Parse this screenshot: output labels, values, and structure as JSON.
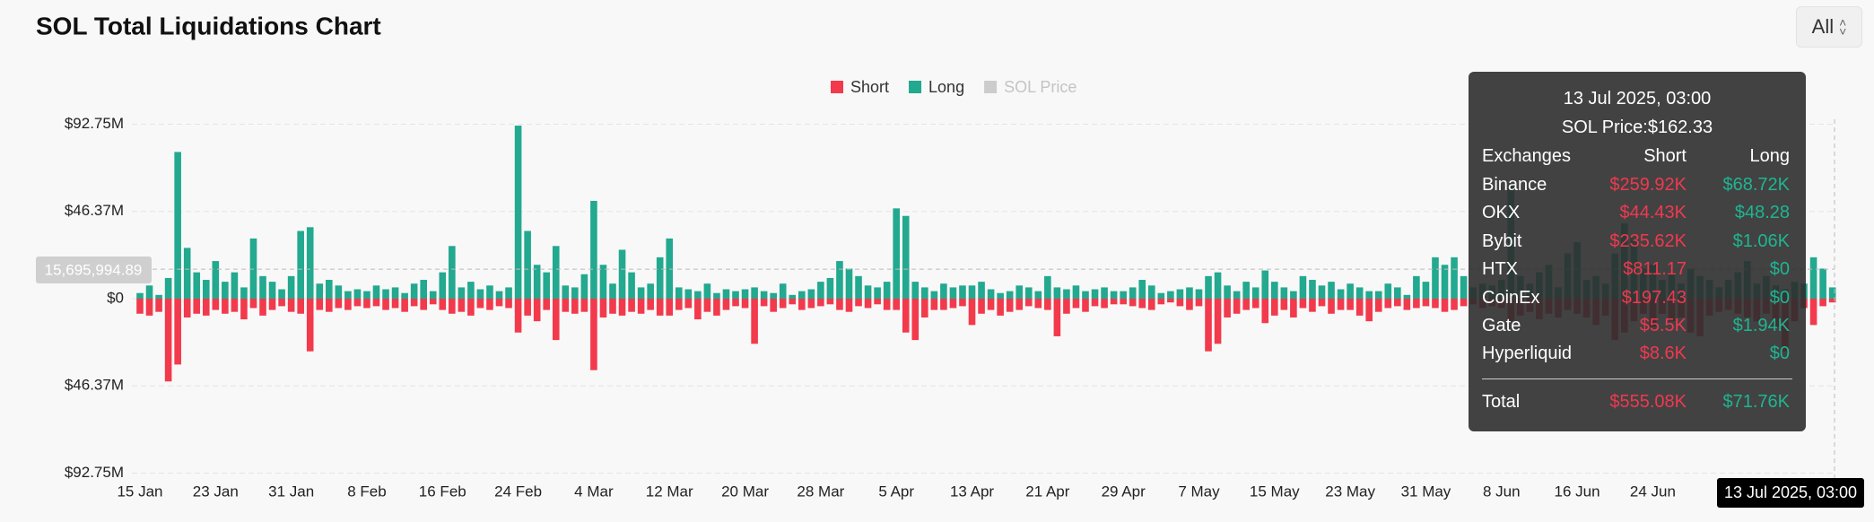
{
  "ui": {
    "range_selector": "All"
  },
  "chart_data": {
    "type": "bar",
    "title": "SOL Total Liquidations Chart",
    "categories": [
      "15 Jan",
      null,
      null,
      null,
      null,
      null,
      null,
      null,
      "23 Jan",
      null,
      null,
      null,
      null,
      null,
      null,
      null,
      "31 Jan",
      null,
      null,
      null,
      null,
      null,
      null,
      null,
      "8 Feb",
      null,
      null,
      null,
      null,
      null,
      null,
      null,
      "16 Feb",
      null,
      null,
      null,
      null,
      null,
      null,
      null,
      "24 Feb",
      null,
      null,
      null,
      null,
      null,
      null,
      null,
      "4 Mar",
      null,
      null,
      null,
      null,
      null,
      null,
      null,
      "12 Mar",
      null,
      null,
      null,
      null,
      null,
      null,
      null,
      "20 Mar",
      null,
      null,
      null,
      null,
      null,
      null,
      null,
      "28 Mar",
      null,
      null,
      null,
      null,
      null,
      null,
      null,
      "5 Apr",
      null,
      null,
      null,
      null,
      null,
      null,
      null,
      "13 Apr",
      null,
      null,
      null,
      null,
      null,
      null,
      null,
      "21 Apr",
      null,
      null,
      null,
      null,
      null,
      null,
      null,
      "29 Apr",
      null,
      null,
      null,
      null,
      null,
      null,
      null,
      "7 May",
      null,
      null,
      null,
      null,
      null,
      null,
      null,
      "15 May",
      null,
      null,
      null,
      null,
      null,
      null,
      null,
      "23 May",
      null,
      null,
      null,
      null,
      null,
      null,
      null,
      "31 May",
      null,
      null,
      null,
      null,
      null,
      null,
      null,
      "8 Jun",
      null,
      null,
      null,
      null,
      null,
      null,
      null,
      "16 Jun",
      null,
      null,
      null,
      null,
      null,
      null,
      null,
      "24 Jun",
      null,
      null,
      null,
      null,
      null,
      null,
      null,
      null,
      null,
      null,
      null,
      null,
      null,
      null,
      null,
      null,
      null,
      null,
      null
    ],
    "series": [
      {
        "name": "Short",
        "color": "#f23a4c",
        "values": [
          -8000000.0,
          -9000000.0,
          -7000000.0,
          -44000000.0,
          -35000000.0,
          -10000000.0,
          -8000000.0,
          -9000000.0,
          -6000000.0,
          -8000000.0,
          -7000000.0,
          -11000000.0,
          -5000000.0,
          -9000000.0,
          -6000000.0,
          -4000000.0,
          -7000000.0,
          -8000000.0,
          -28000000.0,
          -6000000.0,
          -7000000.0,
          -5000000.0,
          -6000000.0,
          -4000000.0,
          -5000000.0,
          -4000000.0,
          -6000000.0,
          -5000000.0,
          -7000000.0,
          -4000000.0,
          -6000000.0,
          -3000000.0,
          -6000000.0,
          -8000000.0,
          -7000000.0,
          -9000000.0,
          -5000000.0,
          -6000000.0,
          -4000000.0,
          -5000000.0,
          -18000000.0,
          -9000000.0,
          -12000000.0,
          -6000000.0,
          -22000000.0,
          -7000000.0,
          -8000000.0,
          -7000000.0,
          -38000000.0,
          -10000000.0,
          -8000000.0,
          -9000000.0,
          -7000000.0,
          -8000000.0,
          -6000000.0,
          -9000000.0,
          -9000000.0,
          -6000000.0,
          -5000000.0,
          -11000000.0,
          -7000000.0,
          -9000000.0,
          -6000000.0,
          -4000000.0,
          -5000000.0,
          -24000000.0,
          -4000000.0,
          -7000000.0,
          -5000000.0,
          -3000000.0,
          -6000000.0,
          -5000000.0,
          -4000000.0,
          -3000000.0,
          -6000000.0,
          -7000000.0,
          -4000000.0,
          -5000000.0,
          -3000000.0,
          -6000000.0,
          -6000000.0,
          -18000000.0,
          -22000000.0,
          -10000000.0,
          -6000000.0,
          -6000000.0,
          -5000000.0,
          -4000000.0,
          -14000000.0,
          -8000000.0,
          -6000000.0,
          -9000000.0,
          -7000000.0,
          -6000000.0,
          -4000000.0,
          -5000000.0,
          -6000000.0,
          -20000000.0,
          -8000000.0,
          -5000000.0,
          -7000000.0,
          -4000000.0,
          -5000000.0,
          -3000000.0,
          -3000000.0,
          -4000000.0,
          -5000000.0,
          -6000000.0,
          -3000000.0,
          -2000000.0,
          -4000000.0,
          -6000000.0,
          -4000000.0,
          -28000000.0,
          -24000000.0,
          -10000000.0,
          -8000000.0,
          -6000000.0,
          -5000000.0,
          -13000000.0,
          -9000000.0,
          -6000000.0,
          -10000000.0,
          -5000000.0,
          -7000000.0,
          -4000000.0,
          -8000000.0,
          -6000000.0,
          -6000000.0,
          -9000000.0,
          -12000000.0,
          -7000000.0,
          -5000000.0,
          -4000000.0,
          -6000000.0,
          -5000000.0,
          -4000000.0,
          -5000000.0,
          -7000000.0,
          -6000000.0,
          -4000000.0,
          -3000000.0,
          -5000000.0,
          -4000000.0,
          -5000000.0,
          -12000000.0,
          -9000000.0,
          -7000000.0,
          -11000000.0,
          -8000000.0,
          -10000000.0,
          -6000000.0,
          -8000000.0,
          -10000000.0,
          -14000000.0,
          -9000000.0,
          -22000000.0,
          -18000000.0,
          -12000000.0,
          -8000000.0,
          -15000000.0,
          -8000000.0,
          -12000000.0,
          -10000000.0,
          -18000000.0,
          -20000000.0,
          -9000000.0,
          -7000000.0,
          -6000000.0,
          -8000000.0,
          -10000000.0,
          -12000000.0,
          -8000000.0,
          -15000000.0,
          -28000000.0,
          -12000000.0,
          -5000000.0,
          -14000000.0,
          -4000000.0,
          -2000000.0
        ]
      },
      {
        "name": "Long",
        "color": "#22a98f",
        "values": [
          3000000.0,
          7000000.0,
          2000000.0,
          11000000.0,
          78000000.0,
          27000000.0,
          14000000.0,
          10000000.0,
          20000000.0,
          9000000.0,
          14000000.0,
          6000000.0,
          32000000.0,
          12000000.0,
          9000000.0,
          5000000.0,
          12000000.0,
          36000000.0,
          38000000.0,
          8000000.0,
          10000000.0,
          7000000.0,
          4000000.0,
          5000000.0,
          4000000.0,
          7000000.0,
          5000000.0,
          6000000.0,
          3000000.0,
          8000000.0,
          10000000.0,
          4000000.0,
          14000000.0,
          28000000.0,
          6000000.0,
          9000000.0,
          5000000.0,
          7000000.0,
          4000000.0,
          6000000.0,
          92000000.0,
          36000000.0,
          18000000.0,
          14000000.0,
          28000000.0,
          7000000.0,
          6000000.0,
          13000000.0,
          52000000.0,
          18000000.0,
          8000000.0,
          26000000.0,
          14000000.0,
          6000000.0,
          8000000.0,
          22000000.0,
          32000000.0,
          6000000.0,
          5000000.0,
          4000000.0,
          8000000.0,
          3000000.0,
          5000000.0,
          4000000.0,
          5000000.0,
          6000000.0,
          4000000.0,
          3000000.0,
          8000000.0,
          2000000.0,
          4000000.0,
          5000000.0,
          9000000.0,
          11000000.0,
          20000000.0,
          16000000.0,
          12000000.0,
          7000000.0,
          6000000.0,
          9000000.0,
          48000000.0,
          44000000.0,
          9000000.0,
          6000000.0,
          4000000.0,
          8000000.0,
          6000000.0,
          7000000.0,
          7000000.0,
          9000000.0,
          5000000.0,
          3000000.0,
          4000000.0,
          7000000.0,
          6000000.0,
          4000000.0,
          12000000.0,
          6000000.0,
          5000000.0,
          7000000.0,
          4000000.0,
          5000000.0,
          6000000.0,
          4000000.0,
          4000000.0,
          6000000.0,
          10000000.0,
          7000000.0,
          3000000.0,
          4000000.0,
          5000000.0,
          6000000.0,
          5000000.0,
          12000000.0,
          14000000.0,
          7000000.0,
          4000000.0,
          9000000.0,
          6000000.0,
          15000000.0,
          9000000.0,
          6000000.0,
          4000000.0,
          12000000.0,
          10000000.0,
          7000000.0,
          9000000.0,
          5000000.0,
          8000000.0,
          6000000.0,
          4000000.0,
          4000000.0,
          8000000.0,
          6000000.0,
          2000000.0,
          12000000.0,
          9000000.0,
          22000000.0,
          18000000.0,
          22000000.0,
          12000000.0,
          6000000.0,
          8000000.0,
          7000000.0,
          10000000.0,
          60000000.0,
          12000000.0,
          8000000.0,
          14000000.0,
          18000000.0,
          6000000.0,
          24000000.0,
          30000000.0,
          10000000.0,
          12000000.0,
          8000000.0,
          24000000.0,
          40000000.0,
          32000000.0,
          16000000.0,
          18000000.0,
          10000000.0,
          14000000.0,
          8000000.0,
          16000000.0,
          12000000.0,
          10000000.0,
          6000000.0,
          10000000.0,
          14000000.0,
          20000000.0,
          8000000.0,
          12000000.0,
          7000000.0,
          5000000.0,
          9000000.0,
          8000000.0,
          22000000.0,
          16000000.0,
          6000000.0
        ]
      },
      {
        "name": "SOL Price",
        "color": "#cccccc",
        "visible": false
      }
    ],
    "ylim": [
      -92750000,
      92750000
    ],
    "yticks": [
      {
        "value": -92750000,
        "label": "$92.75M"
      },
      {
        "value": -46370000,
        "label": "$46.37M"
      },
      {
        "value": 0,
        "label": "$0"
      },
      {
        "value": 46370000,
        "label": "$46.37M"
      },
      {
        "value": 92750000,
        "label": "$92.75M"
      }
    ],
    "grid": true,
    "crosshair_y": {
      "value": 15695994.89,
      "label": "15,695,994.89"
    },
    "crosshair_x_label": "13 Jul 2025, 03:00",
    "tooltip": {
      "title": "13 Jul 2025, 03:00",
      "subtitle": "SOL Price:$162.33",
      "columns": [
        "Exchanges",
        "Short",
        "Long"
      ],
      "rows": [
        [
          "Binance",
          "$259.92K",
          "$68.72K"
        ],
        [
          "OKX",
          "$44.43K",
          "$48.28"
        ],
        [
          "Bybit",
          "$235.62K",
          "$1.06K"
        ],
        [
          "HTX",
          "$811.17",
          "$0"
        ],
        [
          "CoinEx",
          "$197.43",
          "$0"
        ],
        [
          "Gate",
          "$5.5K",
          "$1.94K"
        ],
        [
          "Hyperliquid",
          "$8.6K",
          "$0"
        ]
      ],
      "total": [
        "Total",
        "$555.08K",
        "$71.76K"
      ]
    }
  }
}
